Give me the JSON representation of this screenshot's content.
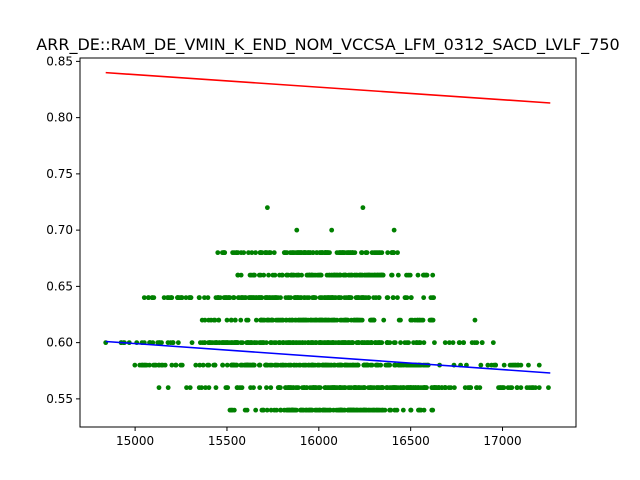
{
  "chart_data": {
    "type": "scatter",
    "title": "ARR_DE::RAM_DE_VMIN_K_END_NOM_VCCSA_LFM_0312_SACD_LVLF_750",
    "xlabel": "",
    "ylabel": "",
    "xlim": [
      14700,
      17400
    ],
    "ylim": [
      0.525,
      0.853
    ],
    "x_ticks": [
      15000,
      15500,
      16000,
      16500,
      17000
    ],
    "y_ticks": [
      0.55,
      0.6,
      0.65,
      0.7,
      0.75,
      0.8,
      0.85
    ],
    "grid": false,
    "legend": "none",
    "colors": {
      "points": "#008000",
      "upper_line": "#ff0000",
      "lower_line": "#0000ff"
    },
    "lines": [
      {
        "x": [
          14840,
          17260
        ],
        "y": [
          0.84,
          0.813
        ]
      },
      {
        "x": [
          14840,
          17260
        ],
        "y": [
          0.601,
          0.573
        ]
      }
    ],
    "bands": [
      {
        "y": 0.54,
        "x_range": [
          15500,
          16650
        ]
      },
      {
        "y": 0.56,
        "x_range": [
          15300,
          17200
        ]
      },
      {
        "y": 0.58,
        "x_range": [
          14980,
          17150
        ]
      },
      {
        "y": 0.6,
        "x_range": [
          14850,
          16900
        ]
      },
      {
        "y": 0.62,
        "x_range": [
          15350,
          16650
        ]
      },
      {
        "y": 0.64,
        "x_range": [
          15050,
          16650
        ]
      },
      {
        "y": 0.66,
        "x_range": [
          15550,
          16620
        ]
      },
      {
        "y": 0.68,
        "x_range": [
          15450,
          16450
        ]
      }
    ],
    "points": [
      [
        14840,
        0.6
      ],
      [
        15050,
        0.64
      ],
      [
        15250,
        0.64
      ],
      [
        15350,
        0.64
      ],
      [
        15440,
        0.64
      ],
      [
        15100,
        0.58
      ],
      [
        15130,
        0.56
      ],
      [
        15180,
        0.56
      ],
      [
        15280,
        0.56
      ],
      [
        15300,
        0.56
      ],
      [
        15150,
        0.58
      ],
      [
        15200,
        0.58
      ],
      [
        15050,
        0.6
      ],
      [
        15080,
        0.6
      ],
      [
        17000,
        0.56
      ],
      [
        17100,
        0.56
      ],
      [
        17200,
        0.56
      ],
      [
        17250,
        0.56
      ],
      [
        17050,
        0.58
      ],
      [
        17100,
        0.58
      ],
      [
        17200,
        0.58
      ],
      [
        16950,
        0.6
      ],
      [
        16850,
        0.62
      ],
      [
        15720,
        0.72
      ],
      [
        16240,
        0.72
      ],
      [
        16410,
        0.7
      ],
      [
        15880,
        0.7
      ],
      [
        16070,
        0.7
      ],
      [
        15450,
        0.68
      ],
      [
        15680,
        0.68
      ],
      [
        15820,
        0.68
      ],
      [
        15900,
        0.68
      ],
      [
        16050,
        0.68
      ],
      [
        16150,
        0.68
      ],
      [
        16290,
        0.68
      ],
      [
        15560,
        0.66
      ],
      [
        15650,
        0.66
      ],
      [
        15700,
        0.66
      ],
      [
        15750,
        0.66
      ],
      [
        15800,
        0.66
      ],
      [
        15850,
        0.66
      ],
      [
        15950,
        0.66
      ],
      [
        16000,
        0.66
      ],
      [
        16100,
        0.66
      ],
      [
        16180,
        0.66
      ],
      [
        16250,
        0.66
      ],
      [
        16350,
        0.66
      ],
      [
        16620,
        0.66
      ],
      [
        15540,
        0.54
      ],
      [
        15690,
        0.54
      ],
      [
        15830,
        0.54
      ],
      [
        15860,
        0.54
      ],
      [
        15900,
        0.54
      ],
      [
        15960,
        0.54
      ],
      [
        16080,
        0.54
      ],
      [
        16120,
        0.54
      ],
      [
        16160,
        0.54
      ],
      [
        16200,
        0.54
      ],
      [
        16290,
        0.54
      ],
      [
        16330,
        0.54
      ],
      [
        16460,
        0.54
      ],
      [
        16500,
        0.54
      ],
      [
        16550,
        0.54
      ],
      [
        16620,
        0.54
      ]
    ]
  }
}
